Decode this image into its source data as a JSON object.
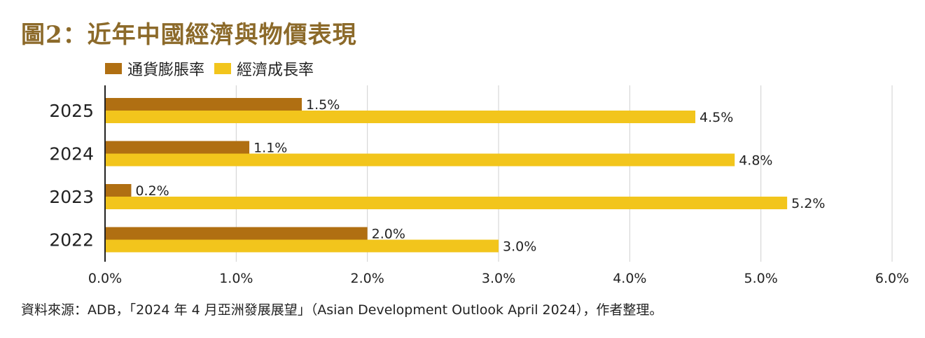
{
  "title": "圖2：近年中國經濟與物價表現",
  "source": "資料來源：ADB，「2024 年 4 月亞洲發展展望」（Asian Development Outlook April 2024），作者整理。",
  "colors": {
    "inflation": "#b06f12",
    "growth": "#f2c51c",
    "title": "#8c6a2a"
  },
  "chart_data": {
    "type": "bar",
    "orientation": "horizontal",
    "categories": [
      "2025",
      "2024",
      "2023",
      "2022"
    ],
    "series": [
      {
        "name": "通貨膨脹率",
        "values": [
          1.5,
          1.1,
          0.2,
          2.0
        ],
        "labels": [
          "1.5%",
          "1.1%",
          "0.2%",
          "2.0%"
        ]
      },
      {
        "name": "經濟成長率",
        "values": [
          4.5,
          4.8,
          5.2,
          3.0
        ],
        "labels": [
          "4.5%",
          "4.8%",
          "5.2%",
          "3.0%"
        ]
      }
    ],
    "xlim": [
      0,
      6
    ],
    "xticks": [
      "0.0%",
      "1.0%",
      "2.0%",
      "3.0%",
      "4.0%",
      "5.0%",
      "6.0%"
    ],
    "grid": true,
    "legend": "top-left"
  }
}
